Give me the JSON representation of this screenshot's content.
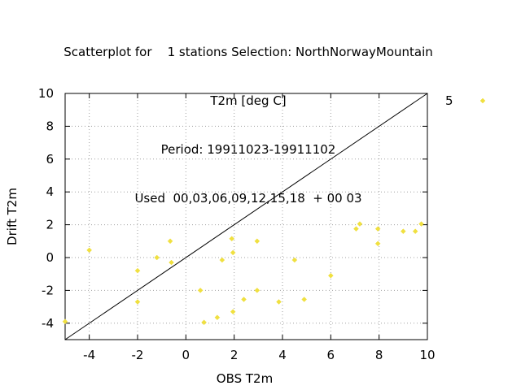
{
  "chart_data": {
    "type": "scatter",
    "title_lines": [
      "Scatterplot for    1 stations Selection: NorthNorwayMountain",
      "T2m [deg C]",
      "Period: 19911023-19911102",
      "Used  00,03,06,09,12,15,18  + 00 03"
    ],
    "xlabel": "OBS T2m",
    "ylabel": "Drift T2m",
    "xlim": [
      -5,
      10
    ],
    "ylim": [
      -5,
      10
    ],
    "xticks": [
      -4,
      -2,
      0,
      2,
      4,
      6,
      8,
      10
    ],
    "yticks": [
      -4,
      -2,
      0,
      2,
      4,
      6,
      8,
      10
    ],
    "grid": true,
    "reference_line": "y = x",
    "legend_position": "right",
    "series": [
      {
        "name": "5",
        "color": "#f0e040",
        "marker": "diamond",
        "points": [
          [
            -5.0,
            -3.9
          ],
          [
            -4.0,
            0.45
          ],
          [
            -2.0,
            -0.8
          ],
          [
            -2.0,
            -2.7
          ],
          [
            -1.2,
            0.0
          ],
          [
            -0.65,
            1.0
          ],
          [
            -0.6,
            -0.3
          ],
          [
            0.6,
            -2.0
          ],
          [
            0.75,
            -3.95
          ],
          [
            1.3,
            -3.65
          ],
          [
            1.5,
            -0.15
          ],
          [
            1.9,
            1.15
          ],
          [
            1.95,
            0.3
          ],
          [
            1.95,
            -3.3
          ],
          [
            2.4,
            -2.55
          ],
          [
            2.95,
            1.0
          ],
          [
            2.95,
            -2.0
          ],
          [
            3.85,
            -2.7
          ],
          [
            4.5,
            -0.15
          ],
          [
            4.9,
            -2.55
          ],
          [
            6.0,
            -1.1
          ],
          [
            7.05,
            1.75
          ],
          [
            7.2,
            2.05
          ],
          [
            7.95,
            1.75
          ],
          [
            7.95,
            0.85
          ],
          [
            9.0,
            1.6
          ],
          [
            9.5,
            1.6
          ],
          [
            9.75,
            2.05
          ]
        ]
      }
    ]
  }
}
